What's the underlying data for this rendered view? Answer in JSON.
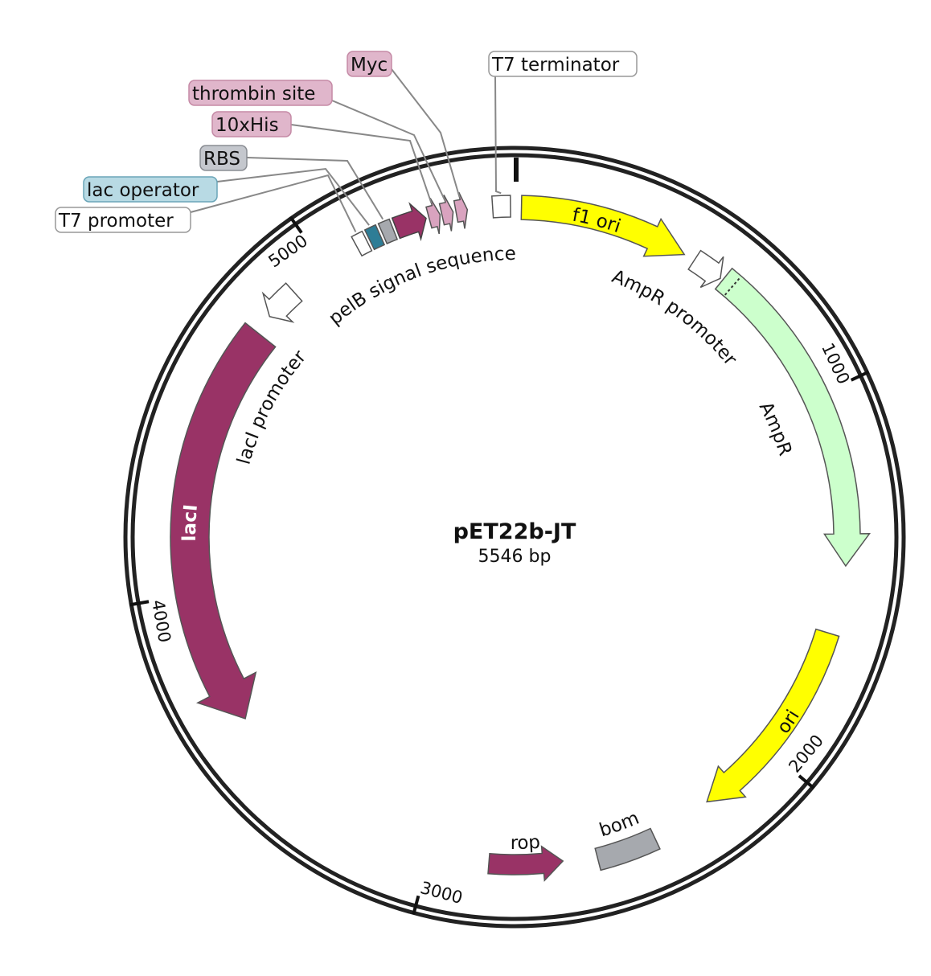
{
  "map": {
    "name": "pET22b-JT",
    "size_label": "5546 bp",
    "ticks": [
      1000,
      2000,
      3000,
      4000,
      5000
    ],
    "features": [
      {
        "label": "f1 ori"
      },
      {
        "label": "AmpR promoter"
      },
      {
        "label": "AmpR"
      },
      {
        "label": "ori"
      },
      {
        "label": "bom"
      },
      {
        "label": "rop"
      },
      {
        "label": "lacI"
      },
      {
        "label": "lacI promoter"
      },
      {
        "label": "pelB signal sequence"
      },
      {
        "label": "T7 promoter"
      },
      {
        "label": "lac operator"
      },
      {
        "label": "RBS"
      },
      {
        "label": "10xHis"
      },
      {
        "label": "thrombin site"
      },
      {
        "label": "Myc"
      },
      {
        "label": "T7 terminator"
      }
    ]
  }
}
